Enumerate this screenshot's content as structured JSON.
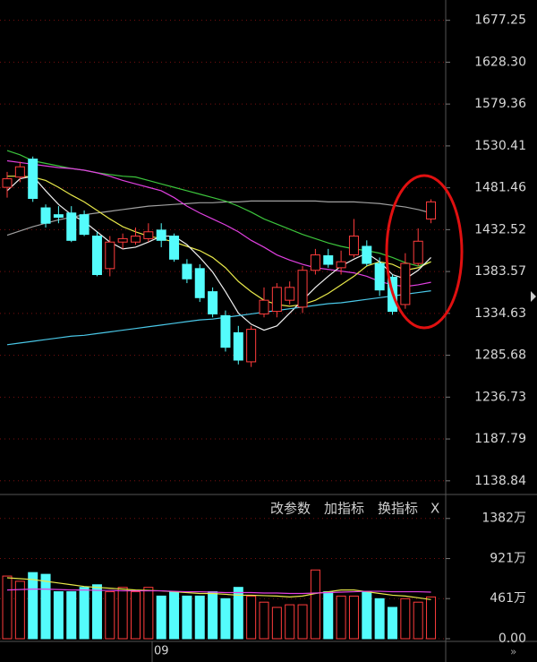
{
  "chart_data": [
    {
      "type": "candlestick",
      "open": [
        1482,
        1494,
        1515,
        1458,
        1450,
        1452,
        1450,
        1425,
        1387,
        1418,
        1418,
        1422,
        1432,
        1425,
        1392,
        1387,
        1360,
        1332,
        1312,
        1278,
        1334,
        1337,
        1350,
        1342,
        1385,
        1402,
        1388,
        1403,
        1413,
        1393,
        1377,
        1345,
        1393,
        1445
      ],
      "high": [
        1500,
        1512,
        1518,
        1462,
        1460,
        1460,
        1455,
        1430,
        1425,
        1428,
        1435,
        1440,
        1440,
        1428,
        1398,
        1392,
        1365,
        1338,
        1320,
        1320,
        1365,
        1370,
        1372,
        1390,
        1410,
        1410,
        1408,
        1445,
        1420,
        1400,
        1380,
        1405,
        1434,
        1468
      ],
      "low": [
        1470,
        1488,
        1465,
        1435,
        1440,
        1418,
        1425,
        1378,
        1378,
        1410,
        1415,
        1418,
        1412,
        1395,
        1370,
        1348,
        1330,
        1290,
        1275,
        1272,
        1330,
        1330,
        1345,
        1335,
        1380,
        1388,
        1380,
        1400,
        1390,
        1355,
        1333,
        1340,
        1390,
        1440
      ],
      "close": [
        1492,
        1506,
        1469,
        1440,
        1447,
        1420,
        1427,
        1380,
        1418,
        1422,
        1425,
        1430,
        1420,
        1398,
        1375,
        1353,
        1334,
        1295,
        1280,
        1316,
        1350,
        1365,
        1365,
        1385,
        1403,
        1392,
        1395,
        1425,
        1393,
        1362,
        1337,
        1393,
        1419,
        1465
      ],
      "up_color": "#ff3c3c",
      "down_color": "#54fcfc",
      "ylim": [
        1125,
        1701
      ],
      "yticks": [
        1677.25,
        {
          "value": 1628.3,
          "label": "1628.30"
        },
        1579.36,
        1530.41,
        1481.46,
        1432.52,
        1383.57,
        1334.63,
        1285.68,
        1236.73,
        1187.79,
        1138.84
      ],
      "grid": true,
      "lines": [
        {
          "color": "#a0a0a0",
          "values": [
            1426,
            1431,
            1436,
            1440,
            1444,
            1447,
            1450,
            1452,
            1454,
            1456,
            1458,
            1460,
            1461,
            1462,
            1463,
            1464,
            1464,
            1465,
            1465,
            1466,
            1466,
            1466,
            1466,
            1466,
            1466,
            1465,
            1465,
            1465,
            1464,
            1463,
            1461,
            1459,
            1456,
            1452
          ]
        },
        {
          "color": "#3cc43c",
          "values": [
            1525,
            1520,
            1513,
            1510,
            1507,
            1504,
            1502,
            1499,
            1497,
            1495,
            1494,
            1490,
            1486,
            1482,
            1478,
            1474,
            1470,
            1466,
            1460,
            1453,
            1445,
            1439,
            1433,
            1427,
            1422,
            1417,
            1413,
            1410,
            1408,
            1405,
            1400,
            1394,
            1390,
            1395
          ]
        },
        {
          "color": "#e040e0",
          "values": [
            1513,
            1511,
            1509,
            1507,
            1505,
            1504,
            1502,
            1499,
            1495,
            1490,
            1486,
            1482,
            1478,
            1470,
            1460,
            1452,
            1445,
            1438,
            1430,
            1420,
            1412,
            1403,
            1397,
            1392,
            1388,
            1386,
            1384,
            1382,
            1378,
            1372,
            1368,
            1366,
            1368,
            1371
          ]
        },
        {
          "color": "#e8e84a",
          "values": [
            1495,
            1495,
            1494,
            1490,
            1482,
            1473,
            1465,
            1455,
            1445,
            1436,
            1430,
            1425,
            1422,
            1418,
            1413,
            1408,
            1400,
            1388,
            1372,
            1360,
            1350,
            1345,
            1343,
            1345,
            1350,
            1358,
            1368,
            1378,
            1390,
            1395,
            1392,
            1385,
            1388,
            1395
          ]
        },
        {
          "color": "#f0f0f0",
          "values": [
            1478,
            1492,
            1495,
            1478,
            1462,
            1450,
            1442,
            1430,
            1418,
            1410,
            1412,
            1418,
            1425,
            1425,
            1415,
            1400,
            1383,
            1360,
            1335,
            1322,
            1315,
            1320,
            1335,
            1350,
            1365,
            1378,
            1390,
            1398,
            1405,
            1395,
            1380,
            1375,
            1385,
            1400
          ]
        },
        {
          "color": "#4ac8e8",
          "values": [
            1298,
            1300,
            1302,
            1304,
            1306,
            1308,
            1309,
            1311,
            1313,
            1315,
            1317,
            1319,
            1321,
            1323,
            1325,
            1327,
            1328,
            1330,
            1332,
            1334,
            1336,
            1338,
            1340,
            1342,
            1344,
            1346,
            1347,
            1349,
            1351,
            1353,
            1355,
            1357,
            1359,
            1361
          ]
        }
      ],
      "month_label": "09"
    },
    {
      "type": "bar",
      "values": [
        720,
        660,
        760,
        740,
        540,
        540,
        590,
        620,
        540,
        590,
        540,
        590,
        490,
        540,
        490,
        490,
        540,
        460,
        590,
        490,
        420,
        360,
        390,
        390,
        790,
        540,
        490,
        490,
        540,
        460,
        360,
        460,
        420,
        480
      ],
      "ylim": [
        0,
        1400
      ],
      "yticks": [
        {
          "value": 1382,
          "label": "1382万"
        },
        {
          "value": 921,
          "label": "921万"
        },
        {
          "value": 461,
          "label": "461万"
        },
        {
          "value": 0,
          "label": "0.00"
        }
      ],
      "grid": true,
      "lines": [
        {
          "color": "#e8e84a",
          "values": [
            700,
            690,
            680,
            660,
            640,
            620,
            600,
            590,
            580,
            570,
            560,
            555,
            550,
            540,
            530,
            520,
            520,
            510,
            500,
            500,
            495,
            490,
            480,
            490,
            520,
            540,
            560,
            560,
            540,
            520,
            500,
            490,
            470,
            450
          ]
        },
        {
          "color": "#e040e0",
          "values": [
            560,
            565,
            570,
            570,
            565,
            560,
            560,
            555,
            555,
            550,
            550,
            550,
            550,
            545,
            540,
            540,
            535,
            530,
            530,
            530,
            525,
            525,
            520,
            520,
            525,
            530,
            535,
            540,
            545,
            545,
            540,
            540,
            540,
            535
          ]
        }
      ],
      "toolbar": [
        "改参数",
        "加指标",
        "换指标",
        "X"
      ]
    }
  ]
}
